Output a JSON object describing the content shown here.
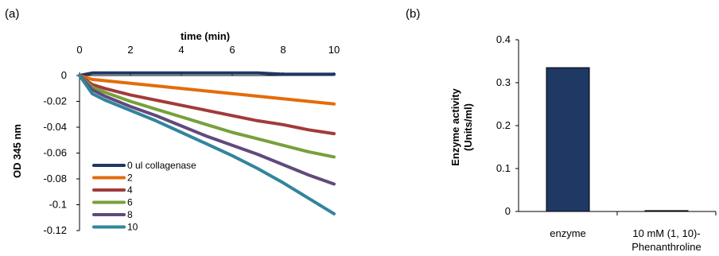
{
  "chart_data": [
    {
      "panel_label": "(a)",
      "type": "line",
      "xlabel": "time (min)",
      "ylabel": "OD 345 nm",
      "xlim": [
        0,
        10
      ],
      "ylim": [
        -0.12,
        0
      ],
      "x_axis_position": "top",
      "x_ticks": [
        0,
        2,
        4,
        6,
        8,
        10
      ],
      "y_ticks": [
        0,
        -0.02,
        -0.04,
        -0.06,
        -0.08,
        -0.1,
        -0.12
      ],
      "x_tick_labels": [
        "0",
        "2",
        "4",
        "6",
        "8",
        "10"
      ],
      "y_tick_labels": [
        "0",
        "-0.02",
        "-0.04",
        "-0.06",
        "-0.08",
        "-0.1",
        "-0.12"
      ],
      "legend_position": "bottom-left",
      "grid": false,
      "x": [
        0,
        0.5,
        1,
        2,
        3,
        4,
        5,
        6,
        7,
        8,
        9,
        10
      ],
      "series": [
        {
          "name": "0 ul collagenase",
          "color": "#1f3864",
          "values": [
            0,
            0.002,
            0.002,
            0.002,
            0.002,
            0.002,
            0.002,
            0.002,
            0.002,
            0.001,
            0.001,
            0.001
          ]
        },
        {
          "name": "2",
          "color": "#e46c0a",
          "values": [
            0,
            -0.003,
            -0.004,
            -0.006,
            -0.008,
            -0.01,
            -0.012,
            -0.014,
            -0.016,
            -0.018,
            -0.02,
            -0.022
          ]
        },
        {
          "name": "4",
          "color": "#a33a3a",
          "values": [
            0,
            -0.007,
            -0.01,
            -0.015,
            -0.019,
            -0.023,
            -0.027,
            -0.031,
            -0.035,
            -0.038,
            -0.042,
            -0.045
          ]
        },
        {
          "name": "6",
          "color": "#77a03c",
          "values": [
            0,
            -0.009,
            -0.013,
            -0.02,
            -0.026,
            -0.032,
            -0.038,
            -0.044,
            -0.049,
            -0.054,
            -0.059,
            -0.063
          ]
        },
        {
          "name": "8",
          "color": "#604a7b",
          "values": [
            0,
            -0.011,
            -0.016,
            -0.024,
            -0.031,
            -0.039,
            -0.047,
            -0.054,
            -0.061,
            -0.069,
            -0.077,
            -0.084
          ]
        },
        {
          "name": "10",
          "color": "#31859c",
          "values": [
            0,
            -0.014,
            -0.019,
            -0.027,
            -0.035,
            -0.044,
            -0.053,
            -0.062,
            -0.072,
            -0.083,
            -0.095,
            -0.107
          ]
        }
      ]
    },
    {
      "panel_label": "(b)",
      "type": "bar",
      "xlabel": "",
      "ylabel_line1": "Enzyme activity",
      "ylabel_line2": "(Units/ml)",
      "ylim": [
        0,
        0.4
      ],
      "y_ticks": [
        0,
        0.1,
        0.2,
        0.3,
        0.4
      ],
      "y_tick_labels": [
        "0",
        "0.1",
        "0.2",
        "0.3",
        "0.4"
      ],
      "categories": [
        {
          "line1": "enzyme",
          "line2": ""
        },
        {
          "line1": "10 mM (1, 10)-",
          "line2": "Phenanthroline"
        }
      ],
      "values": [
        0.335,
        0.002
      ],
      "bar_color": "#1f3864",
      "bar_edge_color": "#000000",
      "grid": false
    }
  ]
}
